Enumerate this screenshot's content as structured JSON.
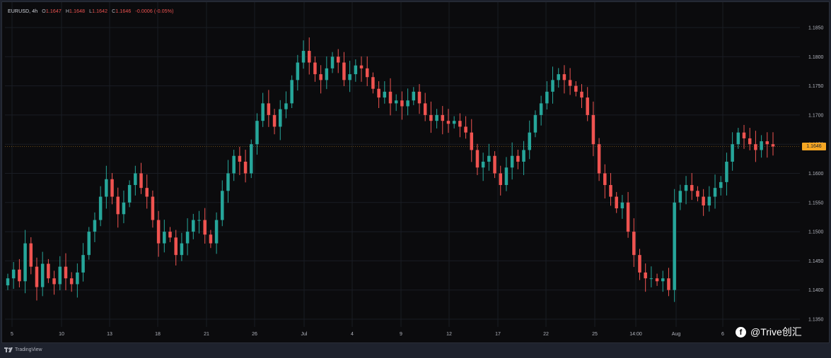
{
  "legend": {
    "symbol": "EURUSD, 4h",
    "open_label": "O",
    "open": "1.1647",
    "high_label": "H",
    "high": "1.1648",
    "low_label": "L",
    "low": "1.1642",
    "close_label": "C",
    "close": "1.1646",
    "change": "-0.0006 (-0.05%)"
  },
  "last_price": "1.1646",
  "branding": {
    "tradingview": "TradingView",
    "watermark": "@Trive创汇"
  },
  "colors": {
    "up": "#26a69a",
    "down": "#ef5350",
    "last_price_line": "#f5a623",
    "background": "#0b0b0d"
  },
  "chart_data": {
    "type": "candlestick",
    "symbol": "EURUSD",
    "timeframe": "4h",
    "y_ticks": [
      "1.1850",
      "1.1800",
      "1.1750",
      "1.1700",
      "1.1650",
      "1.1600",
      "1.1550",
      "1.1500",
      "1.1450",
      "1.1400",
      "1.1350"
    ],
    "x_ticks": [
      "5",
      "10",
      "13",
      "18",
      "21",
      "26",
      "Jul",
      "4",
      "9",
      "12",
      "17",
      "22",
      "25",
      "14:00",
      "Aug",
      "6"
    ],
    "ylim": [
      1.1325,
      1.1875
    ],
    "grid": true,
    "last_price": 1.1646,
    "closes": [
      1.142,
      1.1435,
      1.1415,
      1.148,
      1.144,
      1.1405,
      1.1445,
      1.142,
      1.141,
      1.144,
      1.142,
      1.141,
      1.143,
      1.146,
      1.15,
      1.152,
      1.156,
      1.159,
      1.156,
      1.153,
      1.155,
      1.158,
      1.16,
      1.1575,
      1.156,
      1.152,
      1.148,
      1.15,
      1.149,
      1.146,
      1.148,
      1.15,
      1.152,
      1.152,
      1.1495,
      1.148,
      1.152,
      1.157,
      1.16,
      1.163,
      1.162,
      1.16,
      1.165,
      1.169,
      1.172,
      1.17,
      1.168,
      1.171,
      1.172,
      1.176,
      1.179,
      1.181,
      1.179,
      1.177,
      1.176,
      1.178,
      1.18,
      1.179,
      1.176,
      1.177,
      1.1785,
      1.178,
      1.1765,
      1.1745,
      1.173,
      1.174,
      1.172,
      1.1725,
      1.1715,
      1.1725,
      1.174,
      1.172,
      1.17,
      1.169,
      1.17,
      1.169,
      1.1685,
      1.169,
      1.168,
      1.167,
      1.164,
      1.161,
      1.162,
      1.163,
      1.16,
      1.158,
      1.161,
      1.163,
      1.162,
      1.164,
      1.167,
      1.17,
      1.172,
      1.174,
      1.176,
      1.177,
      1.176,
      1.175,
      1.174,
      1.173,
      1.17,
      1.165,
      1.16,
      1.158,
      1.156,
      1.154,
      1.155,
      1.15,
      1.146,
      1.143,
      1.142,
      1.142,
      1.1415,
      1.142,
      1.14,
      1.155,
      1.157,
      1.158,
      1.157,
      1.156,
      1.1545,
      1.156,
      1.1575,
      1.1585,
      1.162,
      1.165,
      1.167,
      1.166,
      1.165,
      1.164,
      1.1655,
      1.165,
      1.1646
    ]
  }
}
